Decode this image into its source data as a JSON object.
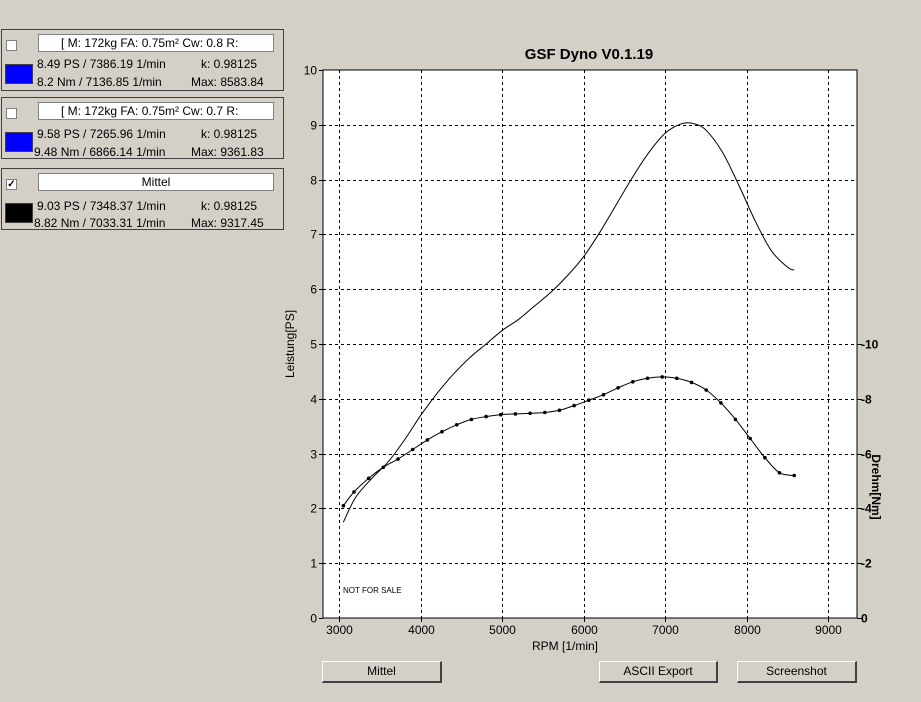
{
  "panels": [
    {
      "checked": false,
      "name": "[ M: 172kg  FA: 0.75m²  Cw: 0.8   R:",
      "line1": "8.49 PS / 7386.19 1/min",
      "k": "k: 0.98125",
      "line2": "8.2 Nm / 7136.85 1/min",
      "max": "Max: 8583.84",
      "color": "#0000ff"
    },
    {
      "checked": false,
      "name": "[ M: 172kg  FA: 0.75m²  Cw: 0.7   R:",
      "line1": "9.58 PS / 7265.96 1/min",
      "k": "k: 0.98125",
      "line2": "9.48 Nm / 6866.14 1/min",
      "max": "Max: 9361.83",
      "color": "#0000ff"
    },
    {
      "checked": true,
      "name": "Mittel",
      "line1": "9.03 PS / 7348.37 1/min",
      "k": "k: 0.98125",
      "line2": "8.82 Nm / 7033.31 1/min",
      "max": "Max: 9317.45",
      "color": "#000000"
    }
  ],
  "checkmark": "✓",
  "buttons": {
    "mittel": "Mittel",
    "ascii_export": "ASCII Export",
    "screenshot": "Screenshot"
  },
  "watermark": "NOT FOR SALE",
  "chart_data": {
    "type": "line",
    "title": "GSF Dyno V0.1.19",
    "xlabel": "RPM [1/min]",
    "ylabel": "Leistung[PS]",
    "y2label": "Drehm[Nm]",
    "xlim": [
      2800,
      9350
    ],
    "ylim": [
      0,
      10
    ],
    "y2lim": [
      0,
      20
    ],
    "grid": true,
    "x_ticks": [
      "3000",
      "4000",
      "5000",
      "6000",
      "7000",
      "8000",
      "9000"
    ],
    "x_tick_values": [
      3000,
      4000,
      5000,
      6000,
      7000,
      8000,
      9000
    ],
    "y_ticks": [
      "0",
      "1",
      "2",
      "3",
      "4",
      "5",
      "6",
      "7",
      "8",
      "9",
      "10"
    ],
    "y_tick_values": [
      0,
      1,
      2,
      3,
      4,
      5,
      6,
      7,
      8,
      9,
      10
    ],
    "y2_ticks": [
      "0",
      "2",
      "4",
      "6",
      "8",
      "10"
    ],
    "y2_tick_values": [
      0,
      2,
      4,
      6,
      8,
      10
    ],
    "series": [
      {
        "name": "Leistung",
        "axis": "left",
        "markers": false,
        "x": [
          3050,
          3200,
          3400,
          3600,
          3800,
          4000,
          4200,
          4400,
          4600,
          4800,
          5000,
          5200,
          5400,
          5600,
          5800,
          6000,
          6200,
          6400,
          6600,
          6800,
          7000,
          7200,
          7350,
          7500,
          7700,
          7900,
          8100,
          8300,
          8500,
          8580
        ],
        "values": [
          1.75,
          2.2,
          2.55,
          2.85,
          3.25,
          3.7,
          4.1,
          4.45,
          4.75,
          5.0,
          5.25,
          5.45,
          5.7,
          5.95,
          6.25,
          6.6,
          7.05,
          7.55,
          8.05,
          8.5,
          8.85,
          9.02,
          9.02,
          8.9,
          8.5,
          7.9,
          7.25,
          6.7,
          6.4,
          6.35
        ]
      },
      {
        "name": "Drehmoment",
        "axis": "right",
        "markers": true,
        "x": [
          3050,
          3180,
          3360,
          3540,
          3720,
          3900,
          4080,
          4260,
          4440,
          4620,
          4800,
          4980,
          5160,
          5340,
          5520,
          5700,
          5880,
          6060,
          6240,
          6420,
          6600,
          6780,
          6960,
          7140,
          7320,
          7500,
          7680,
          7860,
          8040,
          8220,
          8400,
          8580
        ],
        "values": [
          4.1,
          4.6,
          5.1,
          5.5,
          5.8,
          6.15,
          6.5,
          6.8,
          7.05,
          7.25,
          7.35,
          7.42,
          7.45,
          7.47,
          7.5,
          7.58,
          7.75,
          7.95,
          8.15,
          8.4,
          8.62,
          8.75,
          8.8,
          8.75,
          8.6,
          8.32,
          7.85,
          7.25,
          6.55,
          5.85,
          5.3,
          5.2
        ]
      }
    ]
  }
}
